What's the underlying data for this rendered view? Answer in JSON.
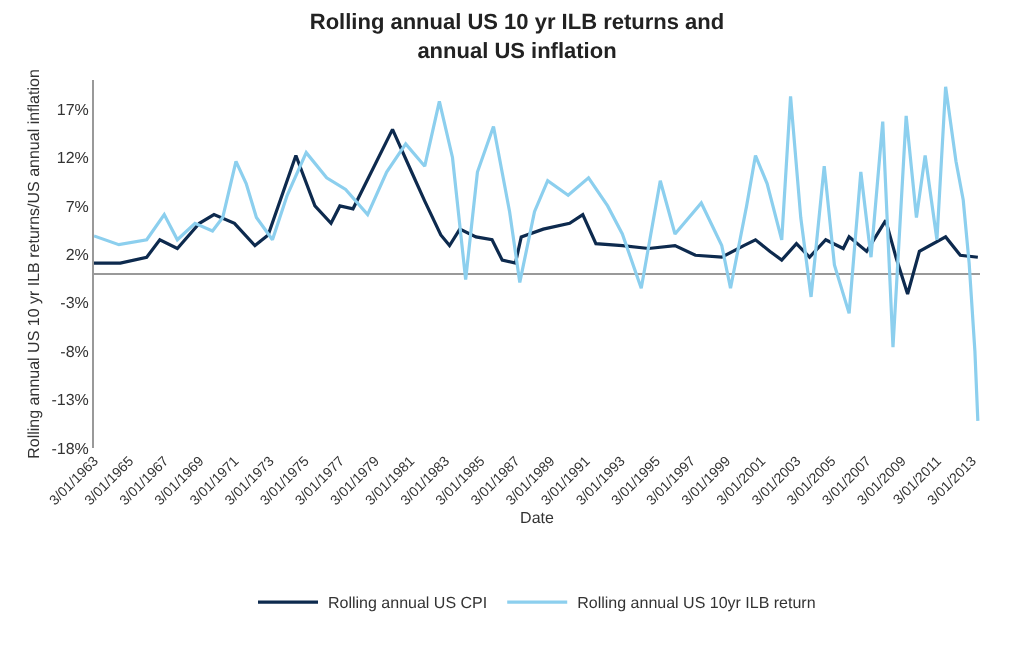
{
  "chart_data": {
    "type": "line",
    "title": "Rolling annual US 10 yr ILB returns and\nannual US inflation",
    "xlabel": "Date",
    "ylabel": "Rolling annual US 10 yr ILB returns/US annual inflation",
    "xlim": [
      "1963-01-01",
      "2013-06-15"
    ],
    "xticks": [
      {
        "value": "1963-01-03",
        "label": "3/01/1963"
      },
      {
        "value": "1965-01-03",
        "label": "3/01/1965"
      },
      {
        "value": "1967-01-03",
        "label": "3/01/1967"
      },
      {
        "value": "1969-01-03",
        "label": "3/01/1969"
      },
      {
        "value": "1971-01-03",
        "label": "3/01/1971"
      },
      {
        "value": "1973-01-03",
        "label": "3/01/1973"
      },
      {
        "value": "1975-01-03",
        "label": "3/01/1975"
      },
      {
        "value": "1977-01-03",
        "label": "3/01/1977"
      },
      {
        "value": "1979-01-03",
        "label": "3/01/1979"
      },
      {
        "value": "1981-01-03",
        "label": "3/01/1981"
      },
      {
        "value": "1983-01-03",
        "label": "3/01/1983"
      },
      {
        "value": "1985-01-03",
        "label": "3/01/1985"
      },
      {
        "value": "1987-01-03",
        "label": "3/01/1987"
      },
      {
        "value": "1989-01-03",
        "label": "3/01/1989"
      },
      {
        "value": "1991-01-03",
        "label": "3/01/1991"
      },
      {
        "value": "1993-01-03",
        "label": "3/01/1993"
      },
      {
        "value": "1995-01-03",
        "label": "3/01/1995"
      },
      {
        "value": "1997-01-03",
        "label": "3/01/1997"
      },
      {
        "value": "1999-01-03",
        "label": "3/01/1999"
      },
      {
        "value": "2001-01-03",
        "label": "3/01/2001"
      },
      {
        "value": "2003-01-03",
        "label": "3/01/2003"
      },
      {
        "value": "2005-01-03",
        "label": "3/01/2005"
      },
      {
        "value": "2007-01-03",
        "label": "3/01/2007"
      },
      {
        "value": "2009-01-03",
        "label": "3/01/2009"
      },
      {
        "value": "2011-01-03",
        "label": "3/01/2011"
      },
      {
        "value": "2013-01-03",
        "label": "3/01/2013"
      }
    ],
    "ylim": [
      -18,
      20
    ],
    "yticks": [
      {
        "value": -18,
        "label": "-18%"
      },
      {
        "value": -13,
        "label": "-13%"
      },
      {
        "value": -8,
        "label": "-8%"
      },
      {
        "value": -3,
        "label": "-3%"
      },
      {
        "value": 2,
        "label": "2%"
      },
      {
        "value": 7,
        "label": "7%"
      },
      {
        "value": 12,
        "label": "12%"
      },
      {
        "value": 17,
        "label": "17%"
      }
    ],
    "legend": "bottom",
    "marker": "none",
    "line_style": "solid",
    "series": [
      {
        "name": "Rolling annual US CPI",
        "color": "#0d2a4e",
        "x": [
          "1963-01",
          "1964-07",
          "1966-01",
          "1966-10",
          "1967-10",
          "1969-01",
          "1969-11",
          "1971-01",
          "1972-03",
          "1972-12",
          "1974-07",
          "1975-08",
          "1976-07",
          "1977-01",
          "1977-10",
          "1980-01",
          "1981-02",
          "1981-11",
          "1982-10",
          "1983-04",
          "1983-11",
          "1984-10",
          "1985-09",
          "1986-04",
          "1987-01",
          "1987-05",
          "1988-08",
          "1990-02",
          "1990-11",
          "1991-08",
          "1993-02",
          "1994-08",
          "1996-02",
          "1997-04",
          "1998-10",
          "2000-01",
          "2000-09",
          "2001-07",
          "2002-03",
          "2003-01",
          "2003-10",
          "2004-09",
          "2005-09",
          "2006-01",
          "2007-01",
          "2008-02",
          "2008-09",
          "2009-05",
          "2010-01",
          "2011-07",
          "2012-05",
          "2013-05"
        ],
        "values": [
          1.1,
          1.1,
          1.7,
          3.5,
          2.6,
          5.2,
          6.1,
          5.2,
          2.9,
          4.0,
          12.2,
          7.0,
          5.2,
          7.0,
          6.7,
          14.9,
          10.5,
          7.5,
          4.0,
          2.9,
          4.6,
          3.8,
          3.5,
          1.4,
          1.1,
          3.8,
          4.6,
          5.2,
          6.1,
          3.1,
          2.9,
          2.6,
          2.9,
          1.9,
          1.7,
          2.9,
          3.5,
          2.3,
          1.4,
          3.1,
          1.7,
          3.5,
          2.6,
          3.8,
          2.3,
          5.5,
          1.7,
          -2.1,
          2.3,
          3.8,
          1.9,
          1.7
        ]
      },
      {
        "name": "Rolling annual US 10yr ILB return",
        "color": "#8ccfee",
        "x": [
          "1963-01",
          "1964-06",
          "1966-01",
          "1967-01",
          "1967-10",
          "1968-10",
          "1969-10",
          "1970-05",
          "1971-02",
          "1971-09",
          "1972-04",
          "1973-03",
          "1974-01",
          "1975-02",
          "1976-04",
          "1977-05",
          "1978-08",
          "1979-09",
          "1980-10",
          "1981-11",
          "1982-09",
          "1983-06",
          "1984-03",
          "1984-11",
          "1985-10",
          "1986-09",
          "1987-04",
          "1988-02",
          "1988-11",
          "1990-01",
          "1991-03",
          "1992-04",
          "1993-02",
          "1994-03",
          "1995-04",
          "1996-02",
          "1997-08",
          "1998-10",
          "1999-04",
          "2000-03",
          "2000-09",
          "2001-05",
          "2002-03",
          "2002-09",
          "2003-04",
          "2003-11",
          "2004-08",
          "2005-03",
          "2006-01",
          "2006-09",
          "2007-04",
          "2007-12",
          "2008-07",
          "2009-04",
          "2009-11",
          "2010-05",
          "2011-01",
          "2011-07",
          "2012-02",
          "2012-07",
          "2012-11",
          "2013-03",
          "2013-05"
        ],
        "values": [
          3.9,
          3.0,
          3.5,
          6.1,
          3.5,
          5.2,
          4.4,
          5.8,
          11.6,
          9.3,
          5.8,
          3.5,
          8.1,
          12.5,
          9.9,
          8.7,
          6.1,
          10.5,
          13.4,
          11.1,
          17.8,
          12.0,
          -0.6,
          10.5,
          15.2,
          6.4,
          -0.9,
          6.4,
          9.6,
          8.1,
          9.9,
          7.0,
          4.1,
          -1.5,
          9.6,
          4.1,
          7.3,
          2.9,
          -1.5,
          7.0,
          12.2,
          9.3,
          3.5,
          18.3,
          5.8,
          -2.4,
          11.1,
          0.9,
          -4.1,
          10.5,
          1.7,
          15.7,
          -7.6,
          16.3,
          5.8,
          12.2,
          3.5,
          19.3,
          11.6,
          7.6,
          1.1,
          -8.0,
          -15.2
        ]
      }
    ]
  }
}
